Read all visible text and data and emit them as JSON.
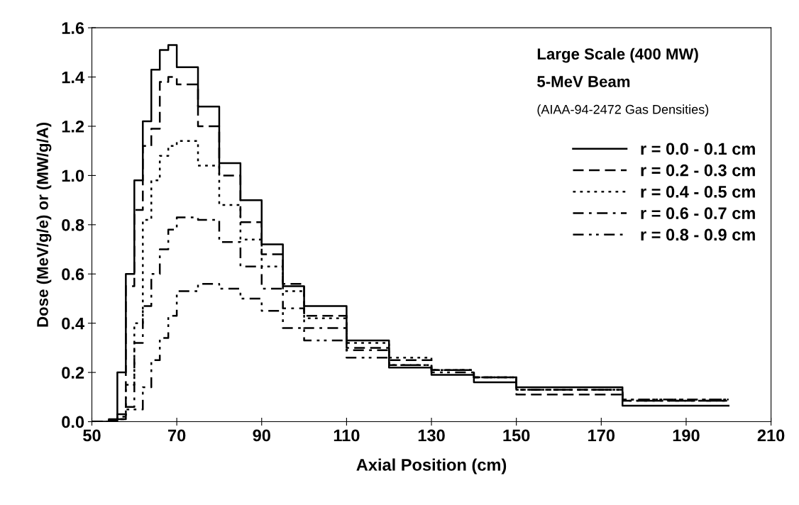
{
  "chart_data": {
    "type": "step",
    "xlabel": "Axial Position (cm)",
    "ylabel": "Dose (MeV/g/e) or (MW/g/A)",
    "annotations": [
      "Large Scale (400 MW)",
      "5-MeV Beam",
      "(AIAA-94-2472 Gas Densities)"
    ],
    "x": [
      50,
      54,
      56,
      58,
      60,
      62,
      64,
      66,
      68,
      70,
      75,
      80,
      85,
      90,
      95,
      100,
      110,
      120,
      130,
      140,
      150,
      175,
      200
    ],
    "series": [
      {
        "name": "r = 0.0 - 0.1 cm",
        "color": "#000000",
        "line_style": "solid",
        "values": [
          0,
          0.01,
          0.2,
          0.6,
          0.98,
          1.22,
          1.43,
          1.51,
          1.53,
          1.44,
          1.28,
          1.05,
          0.9,
          0.72,
          0.55,
          0.47,
          0.33,
          0.22,
          0.19,
          0.16,
          0.14,
          0.065,
          0.065
        ]
      },
      {
        "name": "r = 0.2 - 0.3 cm",
        "color": "#000000",
        "line_style": "dashed",
        "values": [
          0,
          0.005,
          0.03,
          0.55,
          0.86,
          1.12,
          1.19,
          1.38,
          1.4,
          1.37,
          1.2,
          1.0,
          0.81,
          0.68,
          0.56,
          0.43,
          0.3,
          0.25,
          0.21,
          0.18,
          0.11,
          0.085,
          0.085
        ]
      },
      {
        "name": "r = 0.4 - 0.5 cm",
        "color": "#000000",
        "line_style": "dotted",
        "values": [
          0,
          0.005,
          0.02,
          0.15,
          0.4,
          0.82,
          0.98,
          1.08,
          1.12,
          1.14,
          1.04,
          0.88,
          0.74,
          0.63,
          0.53,
          0.42,
          0.32,
          0.26,
          0.21,
          0.18,
          0.13,
          0.09,
          0.09
        ]
      },
      {
        "name": "r = 0.6 - 0.7 cm",
        "color": "#000000",
        "line_style": "dashdot",
        "values": [
          0,
          0,
          0.01,
          0.06,
          0.32,
          0.47,
          0.6,
          0.7,
          0.78,
          0.83,
          0.82,
          0.73,
          0.63,
          0.54,
          0.46,
          0.38,
          0.29,
          0.23,
          0.21,
          0.18,
          0.13,
          0.09,
          0.09
        ]
      },
      {
        "name": "r = 0.8 - 0.9 cm",
        "color": "#000000",
        "line_style": "dashdotdot",
        "values": [
          0,
          0,
          0.01,
          0.05,
          0.05,
          0.14,
          0.25,
          0.34,
          0.43,
          0.53,
          0.56,
          0.54,
          0.5,
          0.45,
          0.38,
          0.33,
          0.26,
          0.23,
          0.2,
          0.18,
          0.13,
          0.085,
          0.085
        ]
      }
    ],
    "xlim": [
      50,
      210
    ],
    "xticks": [
      50,
      70,
      90,
      110,
      130,
      150,
      170,
      190,
      210
    ],
    "ylim": [
      0,
      1.6
    ],
    "yticks": [
      {
        "value": 0,
        "label": "0.0"
      },
      {
        "value": 0.2,
        "label": "0.2"
      },
      {
        "value": 0.4,
        "label": "0.4"
      },
      {
        "value": 0.6,
        "label": "0.6"
      },
      {
        "value": 0.8,
        "label": "0.8"
      },
      {
        "value": 1.0,
        "label": "1.0"
      },
      {
        "value": 1.2,
        "label": "1.2"
      },
      {
        "value": 1.4,
        "label": "1.4"
      },
      {
        "value": 1.6,
        "label": "1.6"
      }
    ],
    "legend": "right",
    "grid": false
  }
}
